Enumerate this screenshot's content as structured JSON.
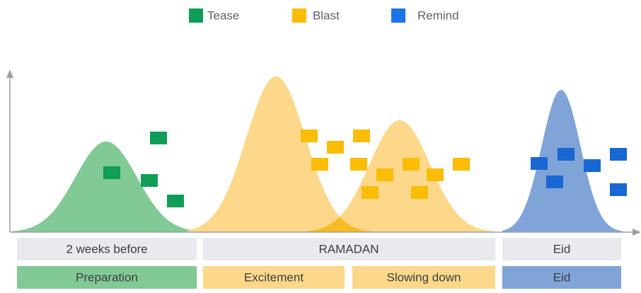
{
  "legend": [
    "Tease",
    "Blast",
    "Remind"
  ],
  "periods": [
    "2 weeks before",
    "RAMADAN",
    "Eid"
  ],
  "phases": [
    "Preparation",
    "Excitement",
    "Slowing down",
    "Eid"
  ]
}
